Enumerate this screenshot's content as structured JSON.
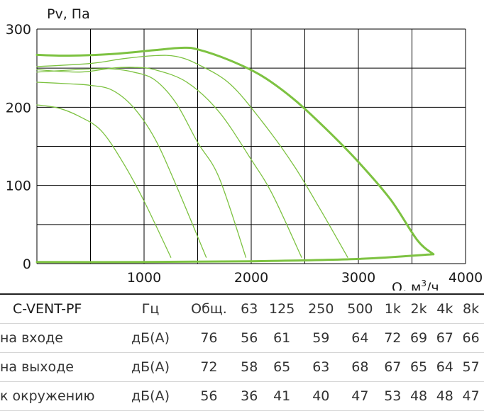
{
  "chart_data": {
    "type": "line",
    "ylabel": "Pv, Па",
    "xlabel_main": "Q, м",
    "xlabel_sup": "3",
    "xlabel_tail": "/ч",
    "xlim": [
      0,
      4000
    ],
    "ylim": [
      0,
      300
    ],
    "grid": true,
    "x_ticks": [
      "1000",
      "2000",
      "3000",
      "4000"
    ],
    "y_ticks": [
      "0",
      "100",
      "200",
      "300"
    ],
    "series": [
      {
        "points": [
          [
            0,
            267
          ],
          [
            300,
            266
          ],
          [
            700,
            268
          ],
          [
            1100,
            273
          ],
          [
            1350,
            276
          ],
          [
            1500,
            274
          ],
          [
            1800,
            260
          ],
          [
            2100,
            240
          ],
          [
            2400,
            210
          ],
          [
            2700,
            172
          ],
          [
            3000,
            130
          ],
          [
            3300,
            82
          ],
          [
            3550,
            30
          ],
          [
            3700,
            12
          ]
        ],
        "width": 3
      },
      {
        "points": [
          [
            0,
            252
          ],
          [
            500,
            256
          ],
          [
            800,
            262
          ],
          [
            1100,
            266
          ],
          [
            1300,
            265
          ],
          [
            1500,
            255
          ],
          [
            1800,
            230
          ],
          [
            2100,
            182
          ],
          [
            2400,
            125
          ],
          [
            2650,
            68
          ],
          [
            2900,
            8
          ]
        ],
        "width": 1.3
      },
      {
        "points": [
          [
            0,
            248
          ],
          [
            400,
            245
          ],
          [
            700,
            250
          ],
          [
            900,
            251
          ],
          [
            1100,
            248
          ],
          [
            1400,
            232
          ],
          [
            1700,
            194
          ],
          [
            2000,
            133
          ],
          [
            2200,
            88
          ],
          [
            2470,
            8
          ]
        ],
        "width": 1.3
      },
      {
        "points": [
          [
            0,
            245
          ],
          [
            500,
            249
          ],
          [
            700,
            249
          ],
          [
            900,
            245
          ],
          [
            1100,
            235
          ],
          [
            1300,
            205
          ],
          [
            1500,
            155
          ],
          [
            1700,
            110
          ],
          [
            1950,
            8
          ]
        ],
        "width": 1.3
      },
      {
        "points": [
          [
            0,
            232
          ],
          [
            300,
            230
          ],
          [
            500,
            228
          ],
          [
            700,
            222
          ],
          [
            900,
            200
          ],
          [
            1100,
            160
          ],
          [
            1300,
            100
          ],
          [
            1580,
            8
          ]
        ],
        "width": 1.3
      },
      {
        "points": [
          [
            0,
            203
          ],
          [
            200,
            199
          ],
          [
            400,
            188
          ],
          [
            600,
            170
          ],
          [
            800,
            130
          ],
          [
            1000,
            80
          ],
          [
            1250,
            8
          ]
        ],
        "width": 1.3
      },
      {
        "points": [
          [
            0,
            2
          ],
          [
            1000,
            2
          ],
          [
            2000,
            3
          ],
          [
            3000,
            6
          ],
          [
            3700,
            12
          ]
        ],
        "width": 3
      }
    ]
  },
  "table": {
    "header": [
      "C-VENT-PF",
      "Гц",
      "Общ.",
      "63",
      "125",
      "250",
      "500",
      "1k",
      "2k",
      "4k",
      "8k"
    ],
    "rows": [
      [
        "на входе",
        "дБ(A)",
        "76",
        "56",
        "61",
        "59",
        "64",
        "72",
        "69",
        "67",
        "66"
      ],
      [
        "на выходе",
        "дБ(A)",
        "72",
        "58",
        "65",
        "63",
        "68",
        "67",
        "65",
        "64",
        "57"
      ],
      [
        "к окружению",
        "дБ(A)",
        "56",
        "36",
        "41",
        "40",
        "47",
        "53",
        "48",
        "48",
        "47"
      ]
    ]
  },
  "colors": {
    "curve": "#7dc241",
    "grid": "#000000"
  }
}
